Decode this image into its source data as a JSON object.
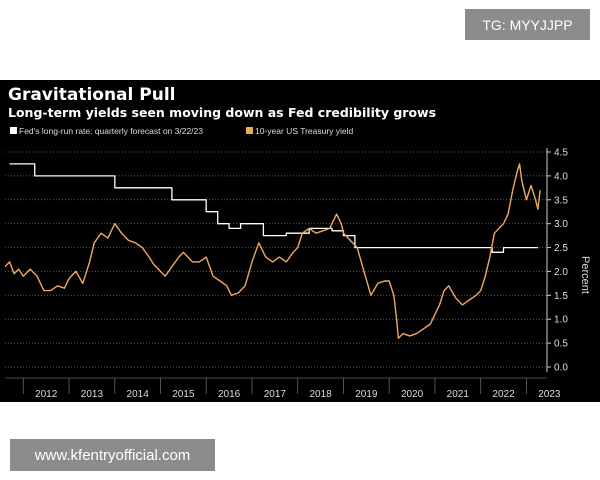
{
  "tag_label": "TG: MYYJJPP",
  "watermark_url": "www.kfentryofficial.com",
  "colors": {
    "background": "#000000",
    "fed_line": "#ffffff",
    "treasury_line": "#f0a860",
    "grid": "#7a7a7a"
  },
  "chart_data": {
    "type": "line",
    "title": "Gravitational Pull",
    "subtitle": "Long-term yields seen moving down as Fed credibility grows",
    "ylabel": "Percent",
    "ylim": [
      0,
      4.5
    ],
    "y_ticks": [
      0.0,
      0.5,
      1.0,
      1.5,
      2.0,
      2.5,
      3.0,
      3.5,
      4.0,
      4.5
    ],
    "y_tick_labels": [
      "0.0",
      "0.5",
      "1.0",
      "1.5",
      "2.0",
      "2.5",
      "3.0",
      "3.5",
      "4.0",
      "4.5"
    ],
    "xlim": [
      2011.6,
      2023.45
    ],
    "x_ticks": [
      2012,
      2013,
      2014,
      2015,
      2016,
      2017,
      2018,
      2019,
      2020,
      2021,
      2022,
      2023
    ],
    "x_tick_labels": [
      "2012",
      "2013",
      "2014",
      "2015",
      "2016",
      "2017",
      "2018",
      "2019",
      "2020",
      "2021",
      "2022",
      "2023"
    ],
    "grid": "horizontal dotted",
    "legend_position": "top-left",
    "series": [
      {
        "name": "Fed's long-run rate: quarterly forecast on 3/22/23",
        "style": "step",
        "x": [
          2011.7,
          2012.25,
          2012.5,
          2013.0,
          2013.25,
          2013.75,
          2014.0,
          2014.25,
          2014.75,
          2015.0,
          2015.25,
          2015.5,
          2015.75,
          2016.0,
          2016.25,
          2016.5,
          2016.75,
          2017.0,
          2017.25,
          2017.5,
          2017.75,
          2018.0,
          2018.25,
          2018.5,
          2018.75,
          2019.0,
          2019.25,
          2019.5,
          2019.75,
          2020.0,
          2020.5,
          2021.0,
          2021.5,
          2022.0,
          2022.25,
          2022.5,
          2023.0,
          2023.25
        ],
        "values": [
          4.25,
          4.0,
          4.0,
          4.0,
          4.0,
          4.0,
          3.75,
          3.75,
          3.75,
          3.75,
          3.5,
          3.5,
          3.5,
          3.25,
          3.0,
          2.9,
          3.0,
          3.0,
          2.75,
          2.75,
          2.8,
          2.8,
          2.9,
          2.9,
          2.85,
          2.75,
          2.5,
          2.5,
          2.5,
          2.5,
          2.5,
          2.5,
          2.5,
          2.5,
          2.4,
          2.5,
          2.5,
          2.5
        ]
      },
      {
        "name": "10-year US Treasury yield",
        "style": "line",
        "x": [
          2011.6,
          2011.7,
          2011.8,
          2011.9,
          2012.0,
          2012.15,
          2012.3,
          2012.45,
          2012.6,
          2012.75,
          2012.9,
          2013.0,
          2013.15,
          2013.3,
          2013.45,
          2013.55,
          2013.7,
          2013.85,
          2014.0,
          2014.15,
          2014.3,
          2014.45,
          2014.6,
          2014.75,
          2014.85,
          2015.0,
          2015.1,
          2015.25,
          2015.4,
          2015.5,
          2015.7,
          2015.85,
          2016.0,
          2016.15,
          2016.3,
          2016.45,
          2016.55,
          2016.7,
          2016.85,
          2017.0,
          2017.15,
          2017.3,
          2017.45,
          2017.6,
          2017.75,
          2017.9,
          2018.0,
          2018.1,
          2018.25,
          2018.4,
          2018.55,
          2018.7,
          2018.85,
          2018.95,
          2019.0,
          2019.15,
          2019.3,
          2019.45,
          2019.6,
          2019.75,
          2019.9,
          2020.0,
          2020.1,
          2020.15,
          2020.2,
          2020.3,
          2020.45,
          2020.6,
          2020.75,
          2020.9,
          2021.0,
          2021.1,
          2021.2,
          2021.3,
          2021.45,
          2021.6,
          2021.75,
          2021.9,
          2022.0,
          2022.1,
          2022.2,
          2022.3,
          2022.4,
          2022.5,
          2022.6,
          2022.7,
          2022.8,
          2022.85,
          2022.9,
          2023.0,
          2023.1,
          2023.2,
          2023.25,
          2023.3
        ],
        "values": [
          2.1,
          2.2,
          1.95,
          2.05,
          1.9,
          2.05,
          1.9,
          1.6,
          1.6,
          1.7,
          1.65,
          1.85,
          2.0,
          1.75,
          2.2,
          2.6,
          2.8,
          2.7,
          3.0,
          2.8,
          2.65,
          2.6,
          2.5,
          2.3,
          2.15,
          2.0,
          1.9,
          2.1,
          2.3,
          2.4,
          2.2,
          2.2,
          2.3,
          1.9,
          1.8,
          1.7,
          1.5,
          1.55,
          1.7,
          2.2,
          2.6,
          2.3,
          2.2,
          2.3,
          2.2,
          2.4,
          2.5,
          2.8,
          2.9,
          2.8,
          2.85,
          2.9,
          3.2,
          3.0,
          2.8,
          2.65,
          2.5,
          2.0,
          1.5,
          1.75,
          1.8,
          1.8,
          1.5,
          1.1,
          0.6,
          0.7,
          0.65,
          0.7,
          0.8,
          0.9,
          1.1,
          1.3,
          1.6,
          1.7,
          1.45,
          1.3,
          1.4,
          1.5,
          1.6,
          1.9,
          2.3,
          2.8,
          2.9,
          3.0,
          3.2,
          3.7,
          4.1,
          4.25,
          3.9,
          3.5,
          3.8,
          3.5,
          3.3,
          3.7
        ]
      }
    ]
  }
}
